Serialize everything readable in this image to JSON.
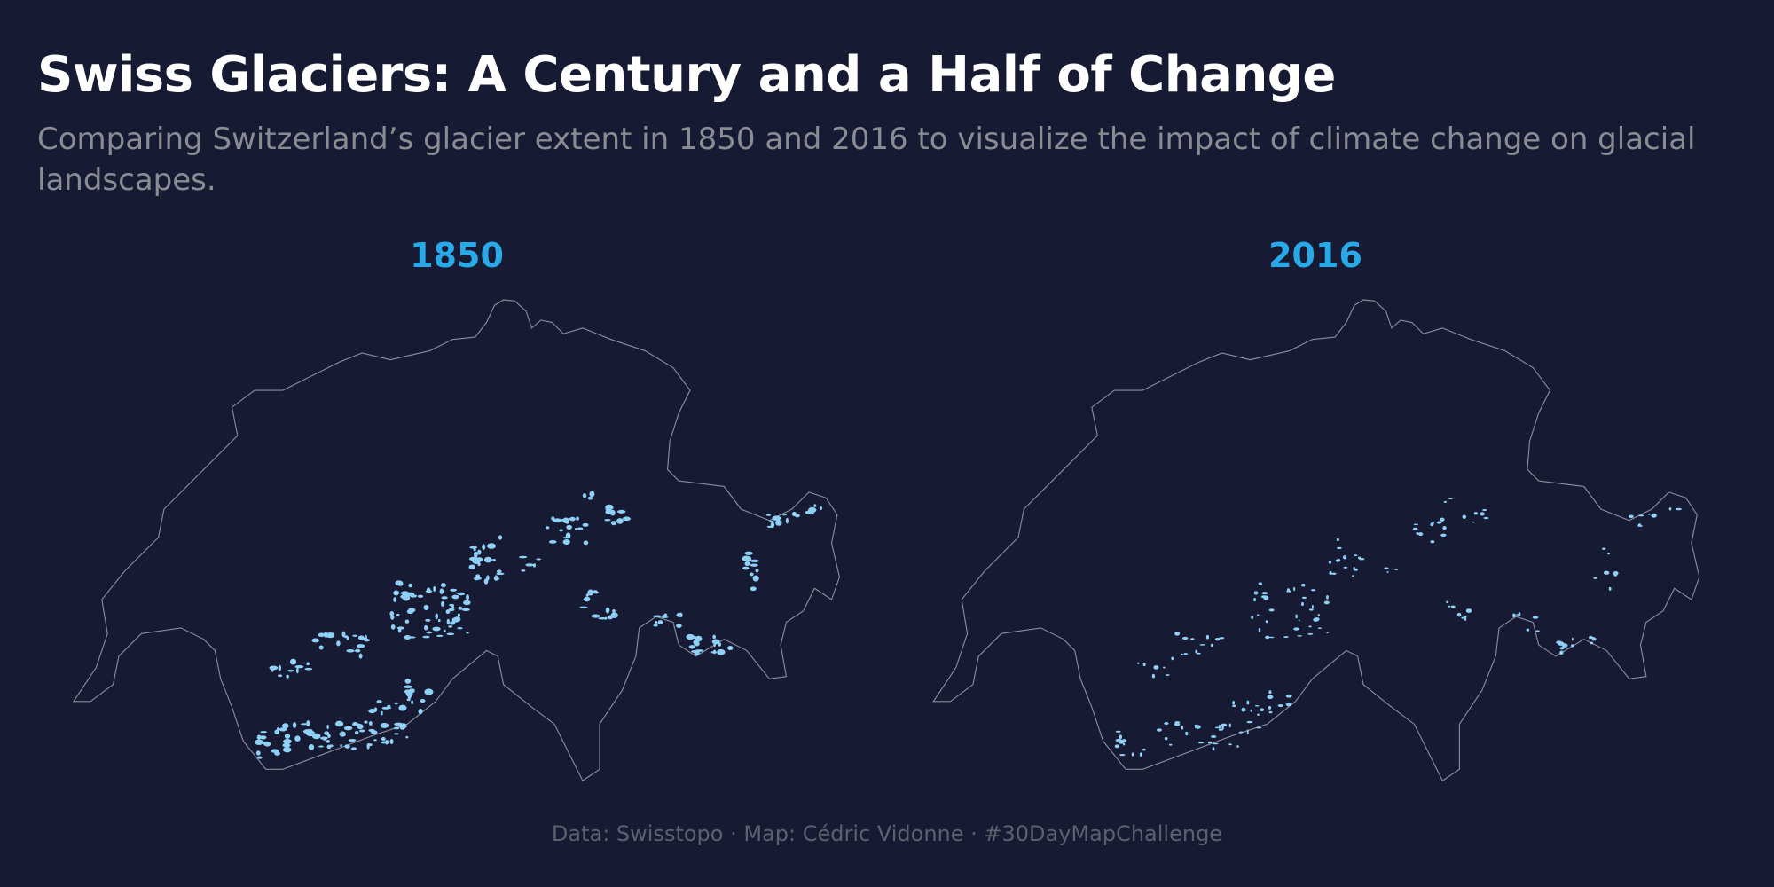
{
  "header": {
    "title": "Swiss Glaciers: A Century and a Half of Change",
    "subtitle": "Comparing Switzerland’s glacier extent in 1850 and 2016 to visualize the impact of climate change on glacial landscapes."
  },
  "panels": [
    {
      "year": "1850"
    },
    {
      "year": "2016"
    }
  ],
  "footer": {
    "credits": "Data: Swisstopo · Map: Cédric Vidonne · #30DayMapChallenge"
  },
  "colors": {
    "background": "#171a33",
    "year_label": "#29a9e8",
    "glacier": "#8fd0f7",
    "border": "#8a8a9a"
  }
}
